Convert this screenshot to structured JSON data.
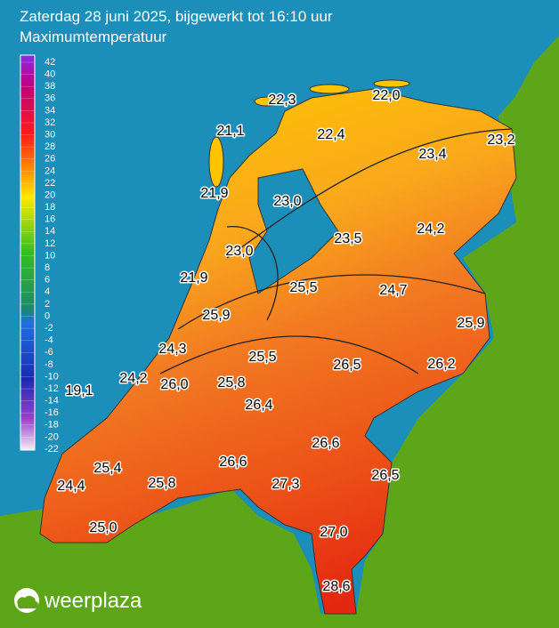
{
  "header": {
    "title": "Zaterdag 28 juni 2025, bijgewerkt tot 16:10 uur",
    "subtitle": "Maximumtemperatuur"
  },
  "legend": {
    "ticks": [
      42,
      40,
      38,
      36,
      34,
      32,
      30,
      28,
      26,
      24,
      22,
      20,
      18,
      16,
      14,
      12,
      10,
      8,
      6,
      4,
      2,
      0,
      -2,
      -4,
      -6,
      -8,
      -10,
      -12,
      -14,
      -16,
      -18,
      -20,
      -22
    ]
  },
  "stations": [
    {
      "value": "22,3"
    },
    {
      "value": "22,0"
    },
    {
      "value": "21,1"
    },
    {
      "value": "22,4"
    },
    {
      "value": "23,2"
    },
    {
      "value": "23,4"
    },
    {
      "value": "21,9"
    },
    {
      "value": "23,0"
    },
    {
      "value": "24,2"
    },
    {
      "value": "23,5"
    },
    {
      "value": "23,0"
    },
    {
      "value": "21,9"
    },
    {
      "value": "25,5"
    },
    {
      "value": "24,7"
    },
    {
      "value": "25,9"
    },
    {
      "value": "25,9"
    },
    {
      "value": "24,3"
    },
    {
      "value": "25,5"
    },
    {
      "value": "26,5"
    },
    {
      "value": "26,2"
    },
    {
      "value": "24,2"
    },
    {
      "value": "19,1"
    },
    {
      "value": "26,0"
    },
    {
      "value": "25,8"
    },
    {
      "value": "26,4"
    },
    {
      "value": "26,6"
    },
    {
      "value": "25,4"
    },
    {
      "value": "26,6"
    },
    {
      "value": "26,5"
    },
    {
      "value": "24,4"
    },
    {
      "value": "25,8"
    },
    {
      "value": "27,3"
    },
    {
      "value": "27,0"
    },
    {
      "value": "25,0"
    },
    {
      "value": "28,6"
    }
  ],
  "logo": {
    "text": "weerplaza"
  }
}
